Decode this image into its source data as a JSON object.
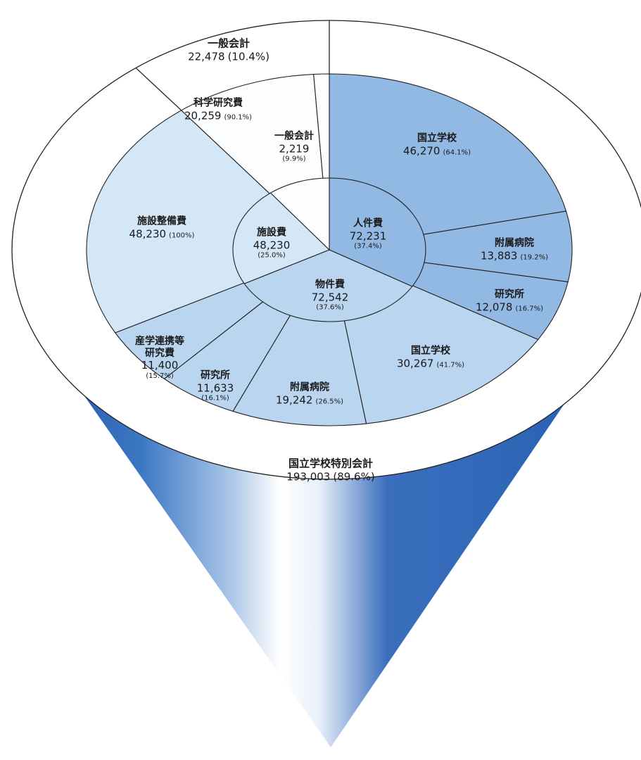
{
  "colors": {
    "personnel": "#92b8e4",
    "goods": "#bad5ef",
    "facility": "#d4e7f6",
    "science": "#fbfdff",
    "outline": "#222222",
    "cone_dark": "#2a63b4",
    "cone_light": "#ffffff"
  },
  "chart_data": {
    "type": "sunburst",
    "unit": "",
    "outer_ring": [
      {
        "name": "国立学校特別会計",
        "value": 193003,
        "pct": "89.6%"
      },
      {
        "name": "一般会計",
        "value": 22478,
        "pct": "10.4%"
      }
    ],
    "inner": [
      {
        "name": "人件費",
        "value": 72231,
        "value_text": "72,231",
        "pct": "(37.4%)"
      },
      {
        "name": "物件費",
        "value": 72542,
        "value_text": "72,542",
        "pct": "(37.6%)"
      },
      {
        "name": "施設費",
        "value": 48230,
        "value_text": "48,230",
        "pct": "(25.0%)"
      }
    ],
    "middle": [
      {
        "parent": "人件費",
        "name": "国立学校",
        "value": 46270,
        "value_text": "46,270",
        "pct": "(64.1%)"
      },
      {
        "parent": "人件費",
        "name": "附属病院",
        "value": 13883,
        "value_text": "13,883",
        "pct": "(19.2%)"
      },
      {
        "parent": "人件費",
        "name": "研究所",
        "value": 12078,
        "value_text": "12,078",
        "pct": "(16.7%)"
      },
      {
        "parent": "物件費",
        "name": "国立学校",
        "value": 30267,
        "value_text": "30,267",
        "pct": "(41.7%)"
      },
      {
        "parent": "物件費",
        "name": "附属病院",
        "value": 19242,
        "value_text": "19,242",
        "pct": "(26.5%)"
      },
      {
        "parent": "物件費",
        "name": "研究所",
        "value": 11633,
        "value_text": "11,633",
        "pct": "(16.1%)"
      },
      {
        "parent": "物件費",
        "name": "産学連携等研究費",
        "value": 11400,
        "value_text": "11,400",
        "pct": "(15.7%)"
      },
      {
        "parent": "施設費",
        "name": "施設整備費",
        "value": 48230,
        "value_text": "48,230",
        "pct": "(100%)"
      },
      {
        "parent": "一般会計",
        "name": "科学研究費",
        "value": 20259,
        "value_text": "20,259",
        "pct": "(90.1%)"
      },
      {
        "parent": "一般会計",
        "name": "一般会計",
        "value": 2219,
        "value_text": "2,219",
        "pct": "(9.9%)"
      }
    ],
    "outer_labels": [
      {
        "name": "国立学校特別会計",
        "value_text": "193,003",
        "pct": "(89.6%)"
      },
      {
        "name": "一般会計",
        "value_text": "22,478",
        "pct": "(10.4%)"
      }
    ]
  }
}
